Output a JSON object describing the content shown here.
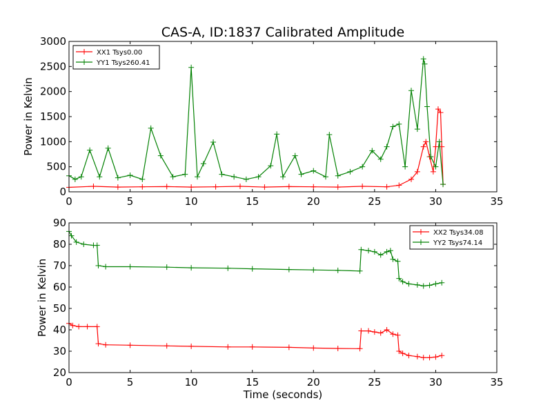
{
  "figure_title": "CAS-A, ID:1837 Calibrated Amplitude",
  "chart_data": [
    {
      "type": "line",
      "title": "CAS-A, ID:1837 Calibrated Amplitude",
      "xlabel": "",
      "ylabel": "Power in Kelvin",
      "xlim": [
        0,
        35
      ],
      "ylim": [
        0,
        3000
      ],
      "xticks": [
        0,
        5,
        10,
        15,
        20,
        25,
        30,
        35
      ],
      "yticks": [
        0,
        500,
        1000,
        1500,
        2000,
        2500,
        3000
      ],
      "grid": false,
      "legend_position": "top-left",
      "marker": "+",
      "series": [
        {
          "name": "XX1 Tsys0.00",
          "color": "#ff0000",
          "x": [
            0.0,
            2.0,
            4.0,
            6.0,
            8.0,
            10.0,
            12.0,
            14.0,
            16.0,
            18.0,
            20.0,
            22.0,
            24.0,
            26.0,
            27.0,
            28.0,
            28.5,
            29.0,
            29.2,
            29.5,
            29.8,
            30.0,
            30.2,
            30.4,
            30.5,
            30.6
          ],
          "y": [
            90,
            110,
            95,
            100,
            105,
            95,
            100,
            110,
            95,
            105,
            100,
            95,
            110,
            100,
            130,
            250,
            400,
            900,
            1000,
            700,
            400,
            900,
            1650,
            1580,
            900,
            150
          ]
        },
        {
          "name": "YY1 Tsys260.41",
          "color": "#008000",
          "x": [
            0.0,
            0.5,
            1.0,
            1.7,
            2.5,
            3.2,
            4.0,
            5.0,
            6.0,
            6.7,
            7.5,
            8.5,
            9.5,
            10.0,
            10.5,
            11.0,
            11.8,
            12.5,
            13.5,
            14.5,
            15.5,
            16.5,
            17.0,
            17.5,
            18.5,
            19.0,
            20.0,
            21.0,
            21.3,
            22.0,
            23.0,
            24.0,
            24.8,
            25.5,
            26.0,
            26.5,
            27.0,
            27.5,
            28.0,
            28.5,
            29.0,
            29.1,
            29.3,
            29.6,
            30.0,
            30.3,
            30.6
          ],
          "y": [
            320,
            250,
            300,
            830,
            300,
            870,
            280,
            330,
            250,
            1270,
            720,
            300,
            350,
            2480,
            300,
            560,
            990,
            350,
            300,
            250,
            300,
            520,
            1150,
            300,
            720,
            350,
            420,
            300,
            1140,
            320,
            400,
            500,
            820,
            650,
            900,
            1300,
            1350,
            500,
            2020,
            1250,
            2650,
            2550,
            1700,
            700,
            500,
            1000,
            150
          ]
        }
      ]
    },
    {
      "type": "line",
      "title": "",
      "xlabel": "Time (seconds)",
      "ylabel": "Power in Kelvin",
      "xlim": [
        0,
        35
      ],
      "ylim": [
        20,
        90
      ],
      "xticks": [
        0,
        5,
        10,
        15,
        20,
        25,
        30,
        35
      ],
      "yticks": [
        20,
        30,
        40,
        50,
        60,
        70,
        80,
        90
      ],
      "grid": false,
      "legend_position": "top-right",
      "marker": "+",
      "series": [
        {
          "name": "XX2 Tsys34.08",
          "color": "#ff0000",
          "x": [
            0.0,
            0.3,
            0.8,
            1.5,
            2.3,
            2.4,
            3.0,
            5.0,
            8.0,
            10.0,
            13.0,
            15.0,
            18.0,
            20.0,
            22.0,
            23.8,
            23.9,
            24.5,
            25.0,
            25.5,
            26.0,
            26.5,
            26.9,
            27.0,
            27.3,
            27.8,
            28.5,
            29.0,
            29.5,
            30.0,
            30.5
          ],
          "y": [
            43,
            42,
            41.5,
            41.5,
            41.5,
            33.5,
            33,
            32.8,
            32.5,
            32.3,
            32,
            32,
            31.8,
            31.5,
            31.3,
            31.2,
            39.5,
            39.5,
            39,
            38.5,
            40,
            38,
            37.5,
            30,
            29,
            28,
            27.5,
            27,
            27,
            27.3,
            28
          ]
        },
        {
          "name": "YY2 Tsys74.14",
          "color": "#008000",
          "x": [
            0.0,
            0.2,
            0.6,
            1.2,
            2.0,
            2.3,
            2.4,
            3.0,
            5.0,
            8.0,
            10.0,
            13.0,
            15.0,
            18.0,
            20.0,
            22.0,
            23.8,
            23.9,
            24.5,
            25.0,
            25.5,
            26.0,
            26.3,
            26.5,
            26.9,
            27.0,
            27.3,
            27.8,
            28.5,
            29.0,
            29.5,
            30.0,
            30.5
          ],
          "y": [
            86,
            84,
            81,
            80,
            79.5,
            79.5,
            70,
            69.5,
            69.5,
            69.3,
            69,
            68.8,
            68.5,
            68.2,
            68,
            67.8,
            67.5,
            77.5,
            77,
            76.5,
            75,
            76.5,
            77,
            73,
            72,
            64,
            62.5,
            61.5,
            61,
            60.5,
            60.8,
            61.5,
            62
          ]
        }
      ]
    }
  ]
}
